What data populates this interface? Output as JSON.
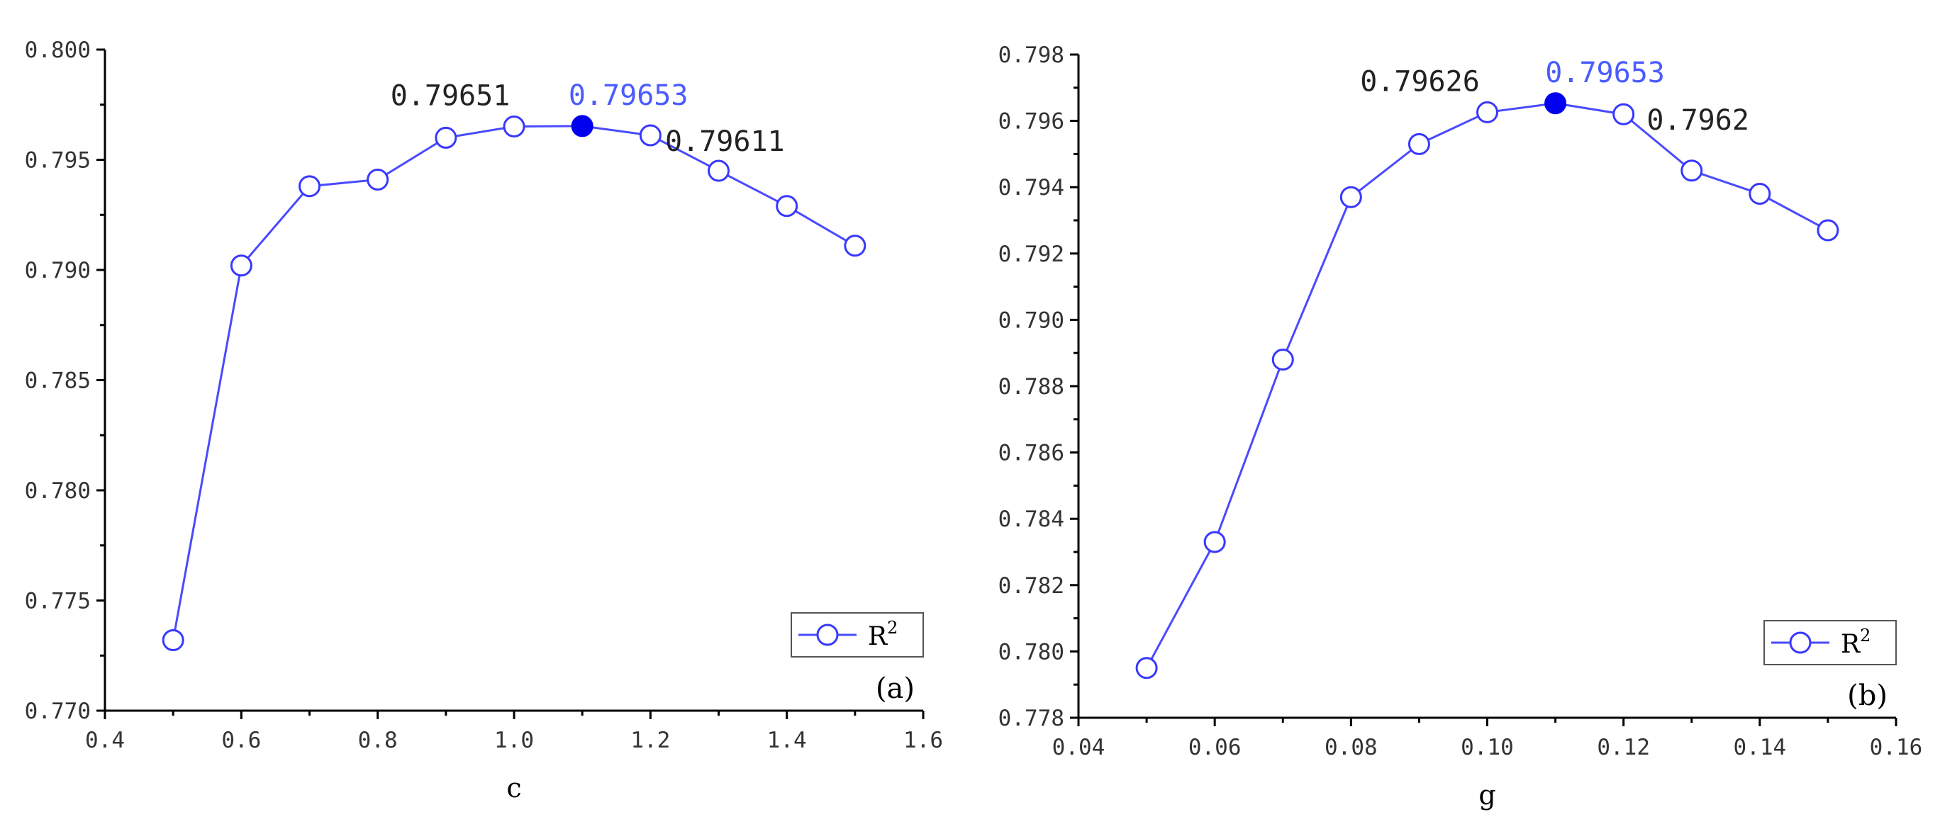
{
  "chart_data": [
    {
      "type": "line",
      "panel_label": "(a)",
      "xlabel": "c",
      "ylabel": "",
      "xlim": [
        0.4,
        1.6
      ],
      "ylim": [
        0.77,
        0.8
      ],
      "x_ticks": [
        "0.4",
        "0.6",
        "0.8",
        "1.0",
        "1.2",
        "1.4",
        "1.6"
      ],
      "y_ticks": [
        "0.770",
        "0.775",
        "0.780",
        "0.785",
        "0.790",
        "0.795",
        "0.800"
      ],
      "legend": {
        "placement": "lower-right",
        "entries": [
          {
            "base": "R",
            "sup": "2"
          }
        ]
      },
      "series": [
        {
          "name": "R2",
          "color": "#4a4aff",
          "x": [
            0.5,
            0.6,
            0.7,
            0.8,
            0.9,
            1.0,
            1.1,
            1.2,
            1.3,
            1.4,
            1.5
          ],
          "y": [
            0.7732,
            0.7902,
            0.7938,
            0.7941,
            0.796,
            0.79651,
            0.79653,
            0.79611,
            0.7945,
            0.7929,
            0.7911
          ],
          "highlight_index": 6
        }
      ],
      "annotations": [
        {
          "text": "0.79651",
          "x": 1.0,
          "y": 0.79651,
          "highlight": false
        },
        {
          "text": "0.79653",
          "x": 1.1,
          "y": 0.79653,
          "highlight": true
        },
        {
          "text": "0.79611",
          "x": 1.2,
          "y": 0.79611,
          "highlight": false
        }
      ]
    },
    {
      "type": "line",
      "panel_label": "(b)",
      "xlabel": "g",
      "ylabel": "",
      "xlim": [
        0.04,
        0.16
      ],
      "ylim": [
        0.778,
        0.798
      ],
      "x_ticks": [
        "0.04",
        "0.06",
        "0.08",
        "0.10",
        "0.12",
        "0.14",
        "0.16"
      ],
      "y_ticks": [
        "0.778",
        "0.780",
        "0.782",
        "0.784",
        "0.786",
        "0.788",
        "0.790",
        "0.792",
        "0.794",
        "0.796",
        "0.798"
      ],
      "legend": {
        "placement": "lower-right",
        "entries": [
          {
            "base": "R",
            "sup": "2"
          }
        ]
      },
      "series": [
        {
          "name": "R2",
          "color": "#4a4aff",
          "x": [
            0.05,
            0.06,
            0.07,
            0.08,
            0.09,
            0.1,
            0.11,
            0.12,
            0.13,
            0.14,
            0.15
          ],
          "y": [
            0.7795,
            0.7833,
            0.7888,
            0.7937,
            0.7953,
            0.79626,
            0.79653,
            0.7962,
            0.7945,
            0.7938,
            0.7927
          ],
          "highlight_index": 6
        }
      ],
      "annotations": [
        {
          "text": "0.79626",
          "x": 0.1,
          "y": 0.79626,
          "highlight": false
        },
        {
          "text": "0.79653",
          "x": 0.11,
          "y": 0.79653,
          "highlight": true
        },
        {
          "text": "0.7962",
          "x": 0.12,
          "y": 0.7962,
          "highlight": false
        }
      ]
    }
  ]
}
